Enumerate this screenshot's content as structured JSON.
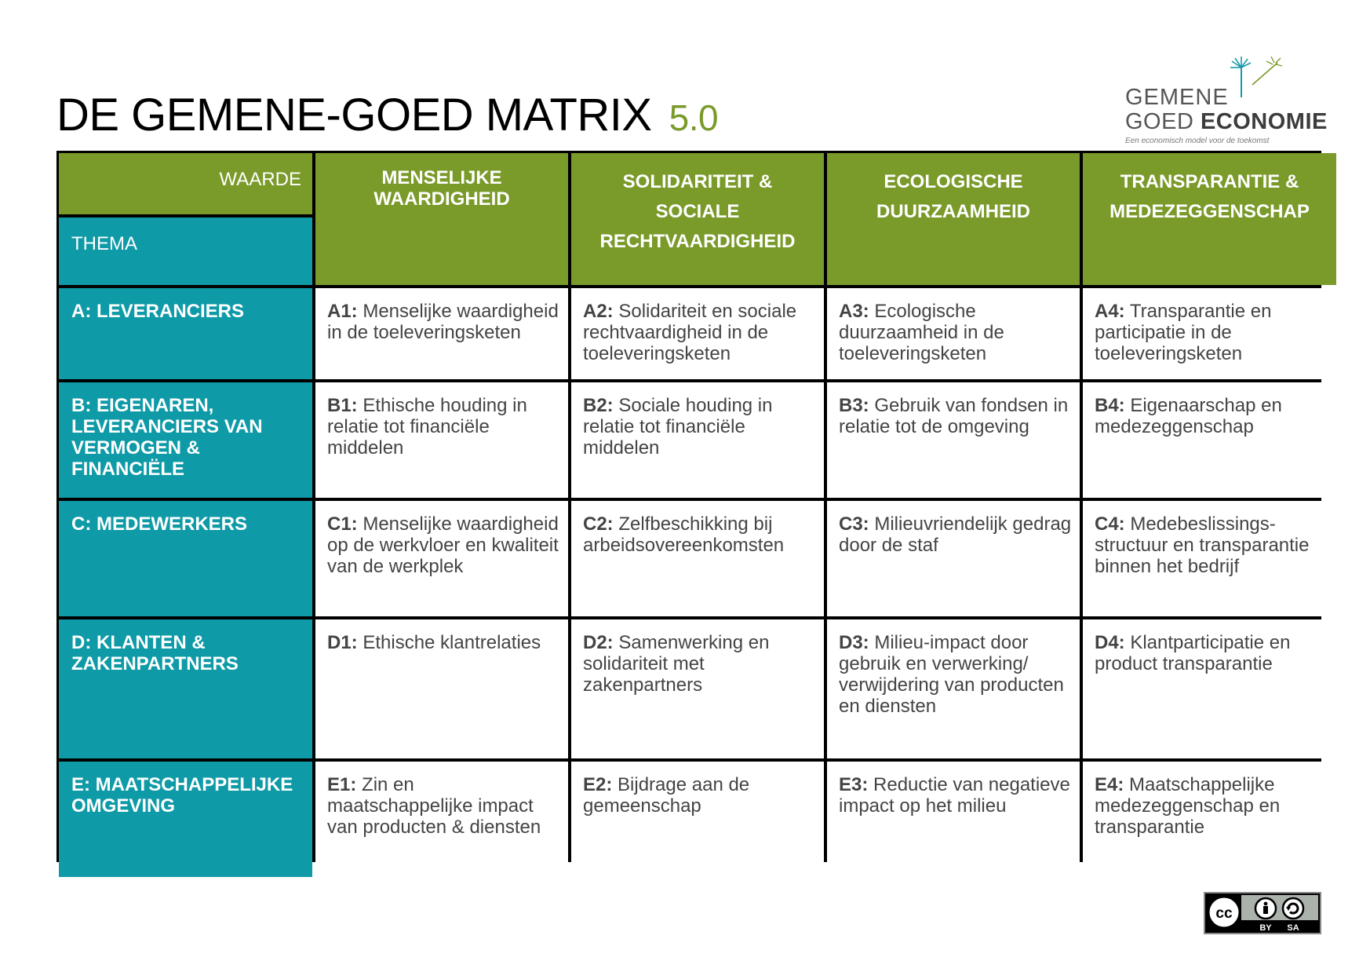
{
  "header": {
    "title": "DE GEMENE-GOED MATRIX",
    "version": "5.0"
  },
  "logo": {
    "line1": "GEMENE",
    "line2_a": "GOED ",
    "line2_b": "ECONOMIE",
    "tagline": "Een economisch model voor de toekomst"
  },
  "matrix": {
    "corner_value_label": "WAARDE",
    "corner_theme_label": "THEMA",
    "values": [
      "MENSELIJKE WAARDIGHEID",
      "SOLIDARITEIT & SOCIALE RECHTVAARDIGHEID",
      "ECOLOGISCHE DUURZAAMHEID",
      "TRANSPARANTIE & MEDEZEGGENSCHAP"
    ],
    "rows": [
      {
        "theme": "A: LEVERANCIERS",
        "cells": [
          {
            "code": "A1:",
            "text": " Menselijke waardigheid in de toeleveringsketen"
          },
          {
            "code": "A2:",
            "text": " Solidariteit en sociale rechtvaardigheid in de toeleveringsketen"
          },
          {
            "code": "A3:",
            "text": " Ecologische duurzaamheid in de toeleveringsketen"
          },
          {
            "code": "A4:",
            "text": " Transparantie en participatie in de toeleveringsketen"
          }
        ]
      },
      {
        "theme": "B: EIGENAREN, LEVERANCIERS VAN VERMOGEN & FINANCIËLE",
        "cells": [
          {
            "code": "B1:",
            "text": " Ethische houding in relatie tot financiële middelen"
          },
          {
            "code": "B2:",
            "text": " Sociale houding in relatie tot financiële middelen"
          },
          {
            "code": "B3:",
            "text": " Gebruik van fondsen in relatie tot de omgeving"
          },
          {
            "code": "B4:",
            "text": " Eigenaarschap en medezeggenschap"
          }
        ]
      },
      {
        "theme": "C: MEDEWERKERS",
        "cells": [
          {
            "code": "C1:",
            "text": " Menselijke waardigheid op de werkvloer en kwaliteit van de werkplek"
          },
          {
            "code": "C2:",
            "text": " Zelfbeschikking bij arbeidsovereenkomsten"
          },
          {
            "code": "C3:",
            "text": " Milieuvriendelijk gedrag door de staf"
          },
          {
            "code": "C4:",
            "text": " Medebeslissings-structuur en transparantie binnen het bedrijf"
          }
        ]
      },
      {
        "theme": "D: KLANTEN & ZAKENPARTNERS",
        "cells": [
          {
            "code": "D1:",
            "text": " Ethische klantrelaties"
          },
          {
            "code": "D2:",
            "text": " Samenwerking en solidariteit met zakenpartners"
          },
          {
            "code": "D3:",
            "text": " Milieu-impact door gebruik en verwerking/ verwijdering van producten en diensten"
          },
          {
            "code": "D4:",
            "text": " Klantparticipatie en product transparantie"
          }
        ]
      },
      {
        "theme": "E: MAATSCHAPPELIJKE OMGEVING",
        "cells": [
          {
            "code": "E1:",
            "text": " Zin en maatschappelijke impact van producten & diensten"
          },
          {
            "code": "E2:",
            "text": " Bijdrage aan de gemeenschap"
          },
          {
            "code": "E3:",
            "text": " Reductie van negatieve impact op het milieu"
          },
          {
            "code": "E4:",
            "text": " Maatschappelijke medezeggenschap en transparantie"
          }
        ]
      }
    ]
  },
  "license": {
    "badge_text": "cc",
    "by": "BY",
    "sa": "SA"
  },
  "colors": {
    "value_green": "#7a9a2a",
    "theme_teal": "#0e9aa7"
  }
}
